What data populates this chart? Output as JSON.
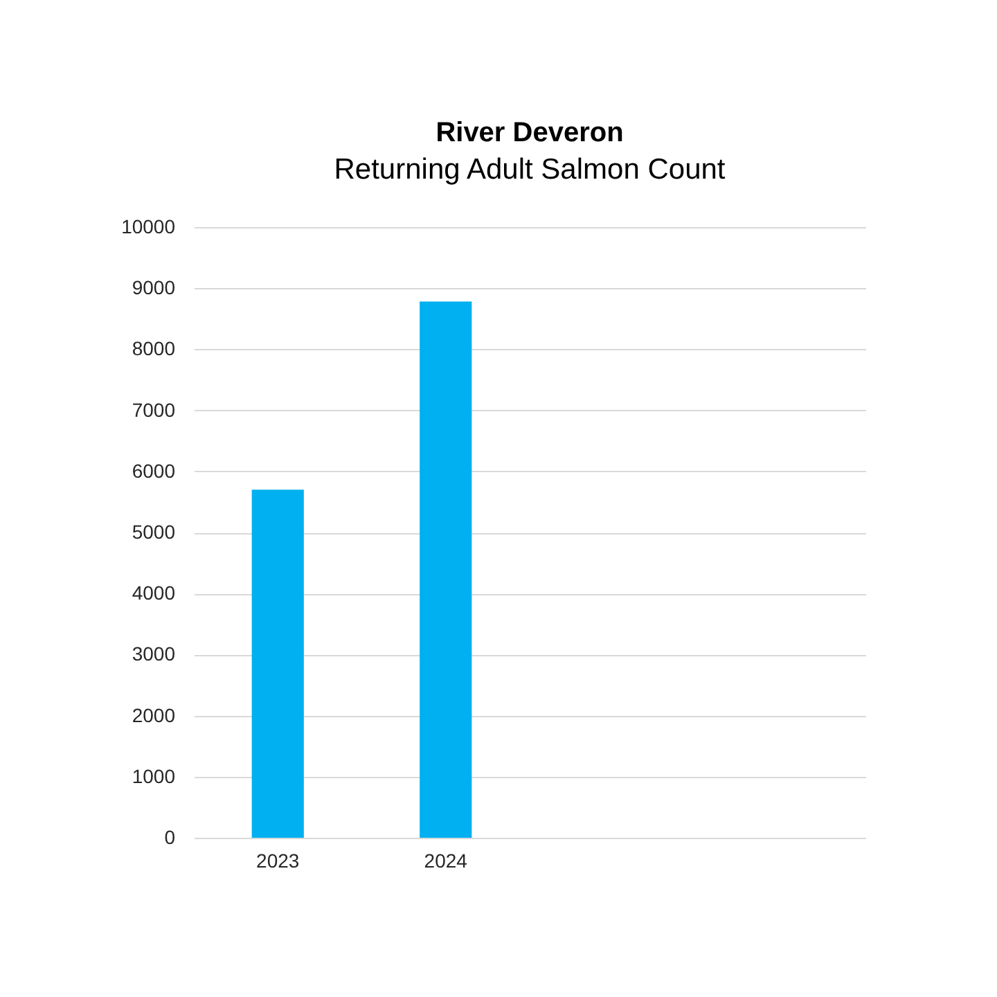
{
  "chart_data": {
    "type": "bar",
    "title": "River Deveron",
    "subtitle": "Returning Adult Salmon Count",
    "categories": [
      "2023",
      "2024",
      null,
      null
    ],
    "values": [
      5700,
      8780,
      null,
      null
    ],
    "color": "#00b0f0",
    "ylim": [
      0,
      10000
    ],
    "yticks": [
      0,
      1000,
      2000,
      3000,
      4000,
      5000,
      6000,
      7000,
      8000,
      9000,
      10000
    ],
    "grid": "y"
  }
}
